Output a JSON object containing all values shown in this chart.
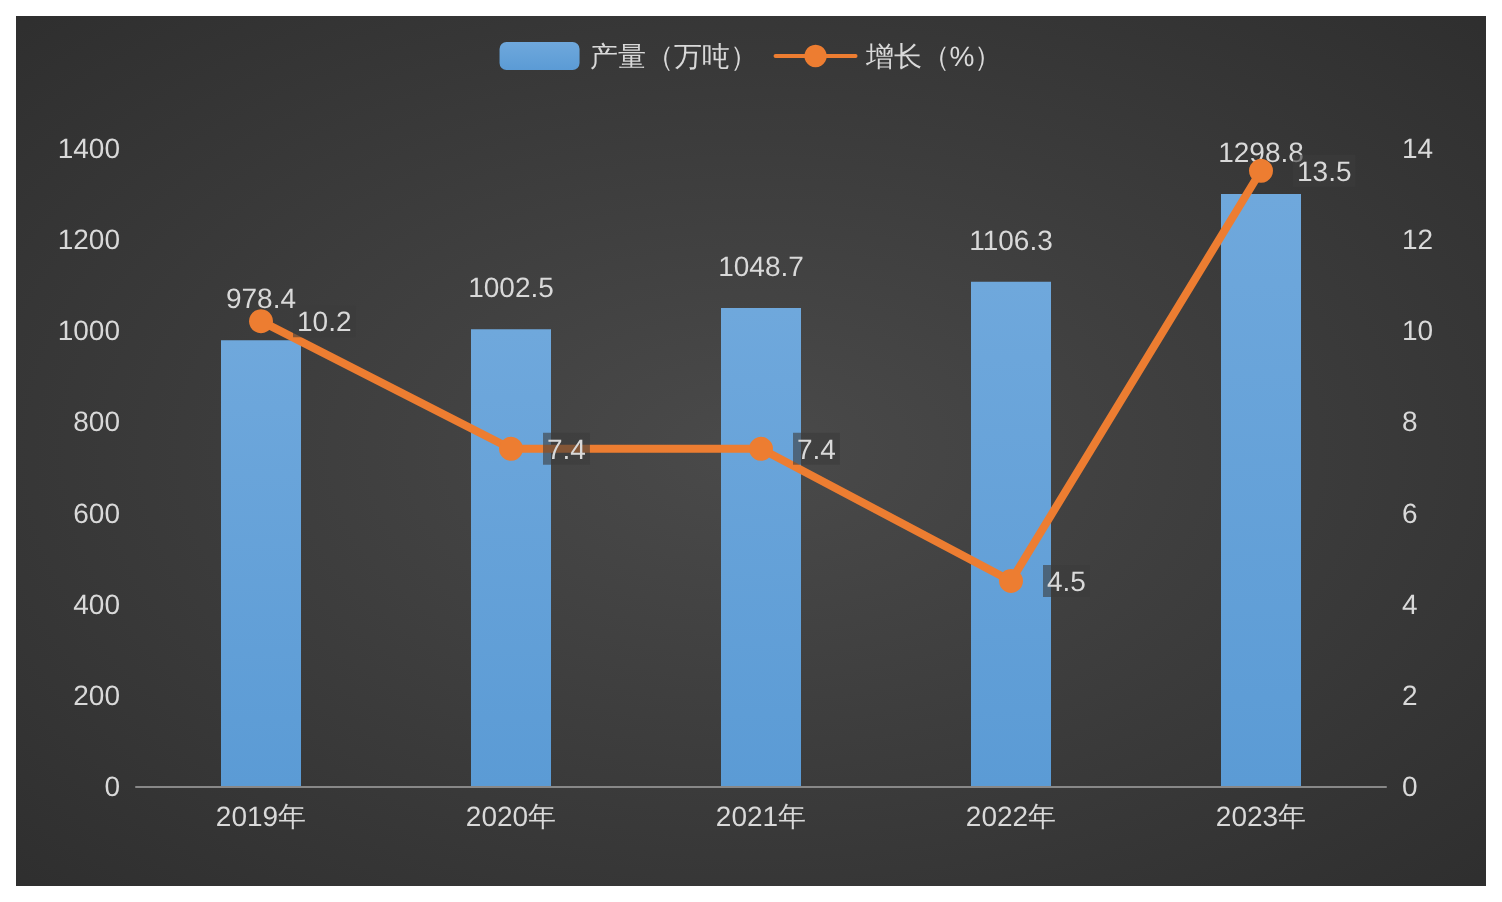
{
  "chart_data": {
    "type": "bar",
    "categories": [
      "2019年",
      "2020年",
      "2021年",
      "2022年",
      "2023年"
    ],
    "series": [
      {
        "name": "产量（万吨）",
        "color": "#5b9bd5",
        "values": [
          978.4,
          1002.5,
          1048.7,
          1106.3,
          1298.8
        ]
      },
      {
        "name": "增长（%）",
        "type": "line",
        "axis": "y2",
        "color": "#ed7d31",
        "values": [
          10.2,
          7.4,
          7.4,
          4.5,
          13.5
        ]
      }
    ],
    "ylim": [
      0,
      1400
    ],
    "yticks": [
      0,
      200,
      400,
      600,
      800,
      1000,
      1200,
      1400
    ],
    "y2lim": [
      0,
      14
    ],
    "y2ticks": [
      0,
      2,
      4,
      6,
      8,
      10,
      12,
      14
    ],
    "data_labels": true,
    "legend": "top",
    "grid": false,
    "marker": "circle",
    "line_style": "solid"
  }
}
